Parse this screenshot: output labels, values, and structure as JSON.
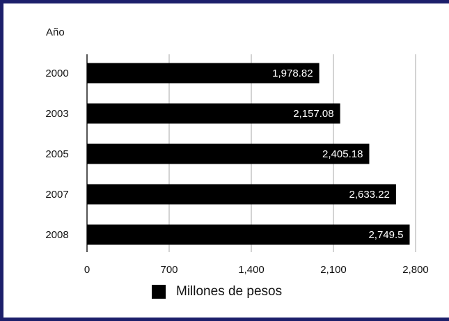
{
  "chart_data": {
    "type": "bar",
    "orientation": "horizontal",
    "categories": [
      "2000",
      "2003",
      "2005",
      "2007",
      "2008"
    ],
    "series": [
      {
        "name": "Millones de pesos",
        "values": [
          1978.82,
          2157.08,
          2405.18,
          2633.22,
          2749.5
        ]
      }
    ],
    "value_labels": [
      "1,978.82",
      "2,157.08",
      "2,405.18",
      "2,633.22",
      "2,749.5"
    ],
    "ylabel": "Año",
    "xlim": [
      0,
      2800
    ],
    "xticks": [
      0,
      700,
      1400,
      2100,
      2800
    ],
    "xtick_labels": [
      "0",
      "700",
      "1,400",
      "2,100",
      "2,800"
    ],
    "grid": true,
    "legend_position": "bottom",
    "colors": {
      "bar": "#000000",
      "grid": "#c8c8c8",
      "frame": "#1c1f6b",
      "bar_label": "#ffffff"
    }
  }
}
